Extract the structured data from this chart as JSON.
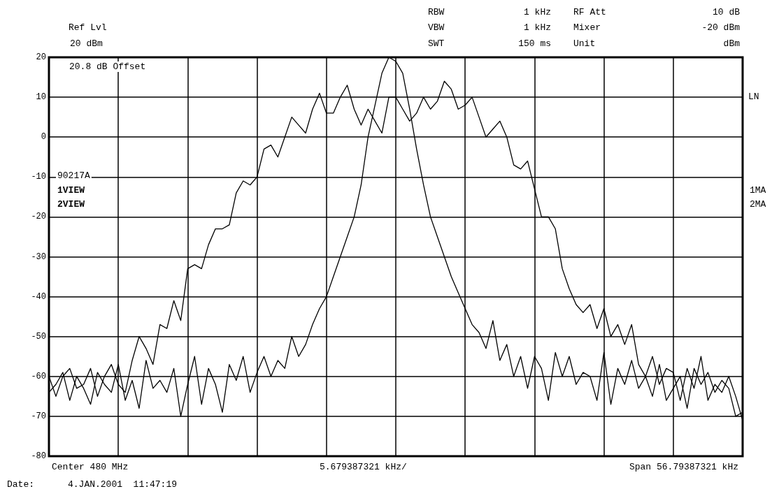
{
  "chart_data": {
    "type": "line",
    "categories": [
      null,
      null,
      null,
      null,
      null,
      null,
      null,
      null,
      null,
      null,
      null,
      null,
      null,
      null,
      null,
      null,
      null,
      null,
      null,
      null,
      null,
      null,
      null,
      null,
      null,
      null,
      null,
      null,
      null,
      null,
      null,
      null,
      null,
      null,
      null,
      null,
      null,
      null,
      null,
      null,
      null,
      null,
      null,
      null,
      null,
      null,
      null,
      null,
      null,
      null,
      null,
      null,
      null,
      null,
      null,
      null,
      null,
      null,
      null,
      null,
      null,
      null,
      null,
      null,
      null,
      null,
      null,
      null,
      null,
      null,
      null,
      null,
      null,
      null,
      null,
      null,
      null,
      null,
      null,
      null,
      null,
      null,
      null,
      null,
      null,
      null,
      null,
      null,
      null,
      null,
      null,
      null,
      null,
      null,
      null,
      null,
      null,
      null,
      null,
      null,
      null
    ],
    "series": [
      {
        "color": "#000000",
        "values": [
          -60,
          -65,
          -60,
          -58,
          -63,
          -62,
          -58,
          -65,
          -60,
          -57,
          -62,
          -64,
          -56,
          -50,
          -53,
          -57,
          -47,
          -48,
          -41,
          -46,
          -33,
          -32,
          -33,
          -27,
          -23,
          -23,
          -22,
          -14,
          -11,
          -12,
          -10,
          -3,
          -2,
          -5,
          0,
          5,
          3,
          1,
          7,
          11,
          6,
          6,
          10,
          13,
          7,
          3,
          7,
          4,
          1,
          10,
          10,
          7,
          4,
          6,
          10,
          7,
          9,
          14,
          12,
          7,
          8,
          10,
          5,
          0,
          2,
          4,
          0,
          -7,
          -8,
          -6,
          -13,
          -20,
          -20,
          -23,
          -33,
          -38,
          -42,
          -44,
          -42,
          -48,
          -43,
          -50,
          -47,
          -52,
          -47,
          -57,
          -60,
          -55,
          -62,
          -58,
          -59,
          -66,
          -58,
          -63,
          -55,
          -66,
          -62,
          -64,
          -60,
          -65,
          -71
        ]
      },
      {
        "color": "#000000",
        "values": [
          -64,
          -62,
          -59,
          -66,
          -60,
          -63,
          -67,
          -59,
          -62,
          -64,
          -57,
          -66,
          -61,
          -68,
          -56,
          -63,
          -61,
          -64,
          -58,
          -70,
          -62,
          -55,
          -67,
          -58,
          -62,
          -69,
          -57,
          -61,
          -55,
          -64,
          -59,
          -55,
          -60,
          -56,
          -58,
          -50,
          -55,
          -52,
          -47,
          -43,
          -40,
          -35,
          -30,
          -25,
          -20,
          -12,
          0,
          8,
          16,
          20,
          19,
          16,
          7,
          -3,
          -12,
          -20,
          -25,
          -30,
          -35,
          -39,
          -43,
          -47,
          -49,
          -53,
          -46,
          -56,
          -52,
          -60,
          -55,
          -63,
          -55,
          -58,
          -66,
          -54,
          -60,
          -55,
          -62,
          -59,
          -60,
          -66,
          -54,
          -67,
          -58,
          -62,
          -56,
          -63,
          -60,
          -65,
          -57,
          -66,
          -63,
          -60,
          -68,
          -58,
          -62,
          -59,
          -64,
          -61,
          -63,
          -70,
          -69
        ]
      }
    ],
    "ylim": [
      -80,
      20
    ],
    "yticks": [
      -80,
      -70,
      -60,
      -50,
      -40,
      -30,
      -20,
      -10,
      0,
      10,
      20
    ],
    "grid": true,
    "tick_labels": "y",
    "marker": "none",
    "line_style": "solid",
    "annotations": [
      "Ref Lvl",
      "20 dBm",
      "RBW",
      "1 kHz",
      "RF Att",
      "10 dB",
      "VBW",
      "1 kHz",
      "Mixer",
      "-20 dBm",
      "SWT",
      "150 ms",
      "Unit",
      "dBm",
      "20.8 dB Offset",
      "90217A",
      "1VIEW",
      "2VIEW",
      "LN",
      "1MA",
      "2MA",
      "Center 480 MHz",
      "5.679387321 kHz/",
      "Span 56.79387321 kHz",
      "Date:",
      "4.JAN.2001  11:47:19"
    ]
  }
}
